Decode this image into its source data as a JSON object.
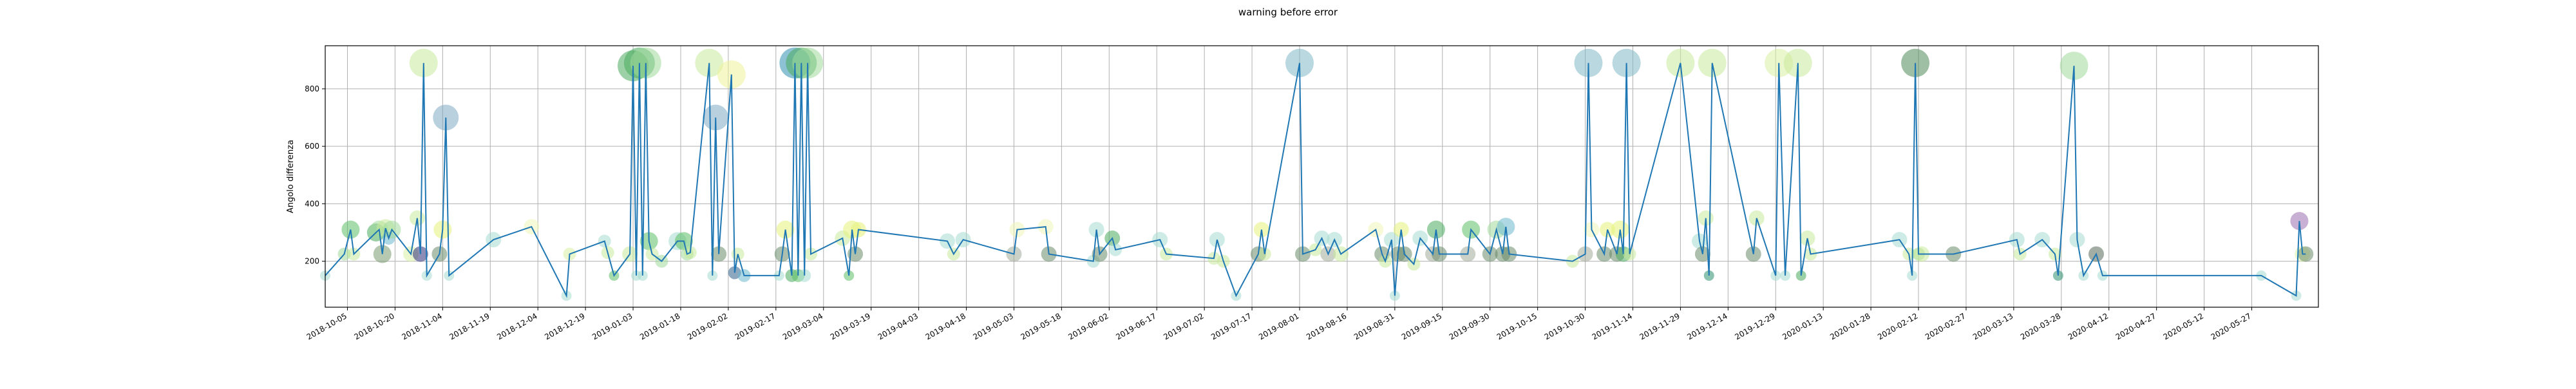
{
  "chart_data": {
    "type": "line",
    "title": "warning before error",
    "xlabel": "",
    "ylabel": "Angolo differenza",
    "xlim": [
      "2018-09-28",
      "2020-06-17"
    ],
    "ylim": [
      40,
      950
    ],
    "grid": true,
    "line_color": "#1f77b4",
    "x_ticks": [
      "2018-10-05",
      "2018-10-20",
      "2018-11-04",
      "2018-11-19",
      "2018-12-04",
      "2018-12-19",
      "2019-01-03",
      "2019-01-18",
      "2019-02-02",
      "2019-02-17",
      "2019-03-04",
      "2019-03-19",
      "2019-04-03",
      "2019-04-18",
      "2019-05-03",
      "2019-05-18",
      "2019-06-02",
      "2019-06-17",
      "2019-07-02",
      "2019-07-17",
      "2019-08-01",
      "2019-08-16",
      "2019-08-31",
      "2019-09-15",
      "2019-09-30",
      "2019-10-15",
      "2019-10-30",
      "2019-11-14",
      "2019-11-29",
      "2019-12-14",
      "2019-12-29",
      "2020-01-13",
      "2020-01-28",
      "2020-02-12",
      "2020-02-27",
      "2020-03-13",
      "2020-03-28",
      "2020-04-12",
      "2020-04-27",
      "2020-05-12",
      "2020-05-27"
    ],
    "y_ticks": [
      200,
      400,
      600,
      800
    ],
    "points": [
      {
        "x": "2018-09-28",
        "y": 150,
        "size": 8,
        "color": "#a5dcd0"
      },
      {
        "x": "2018-10-04",
        "y": 225,
        "size": 10,
        "color": "#9fd99a"
      },
      {
        "x": "2018-10-06",
        "y": 310,
        "size": 14,
        "color": "#5cbf66"
      },
      {
        "x": "2018-10-07",
        "y": 225,
        "size": 10,
        "color": "#c9ea9a"
      },
      {
        "x": "2018-10-14",
        "y": 300,
        "size": 14,
        "color": "#4aab5e"
      },
      {
        "x": "2018-10-15",
        "y": 310,
        "size": 14,
        "color": "#9fd99a"
      },
      {
        "x": "2018-10-16",
        "y": 225,
        "size": 14,
        "color": "#7a9a70"
      },
      {
        "x": "2018-10-17",
        "y": 315,
        "size": 14,
        "color": "#c9ea9a"
      },
      {
        "x": "2018-10-18",
        "y": 280,
        "size": 10,
        "color": "#6db8d0"
      },
      {
        "x": "2018-10-19",
        "y": 310,
        "size": 14,
        "color": "#9fd99a"
      },
      {
        "x": "2018-10-25",
        "y": 225,
        "size": 12,
        "color": "#d9f0a3"
      },
      {
        "x": "2018-10-27",
        "y": 350,
        "size": 12,
        "color": "#c9ea9a"
      },
      {
        "x": "2018-10-28",
        "y": 225,
        "size": 12,
        "color": "#2b2f7a"
      },
      {
        "x": "2018-10-29",
        "y": 890,
        "size": 22,
        "color": "#c9ea9a"
      },
      {
        "x": "2018-10-30",
        "y": 150,
        "size": 8,
        "color": "#a5dcd0"
      },
      {
        "x": "2018-11-03",
        "y": 225,
        "size": 12,
        "color": "#6a8a6a"
      },
      {
        "x": "2018-11-04",
        "y": 310,
        "size": 14,
        "color": "#e6f27a"
      },
      {
        "x": "2018-11-05",
        "y": 700,
        "size": 20,
        "color": "#7fa9c2"
      },
      {
        "x": "2018-11-06",
        "y": 150,
        "size": 8,
        "color": "#a5dcd0"
      },
      {
        "x": "2018-11-20",
        "y": 275,
        "size": 12,
        "color": "#a5dcd0"
      },
      {
        "x": "2018-12-02",
        "y": 320,
        "size": 12,
        "color": "#f0f5b8"
      },
      {
        "x": "2018-12-13",
        "y": 80,
        "size": 8,
        "color": "#a5dcd0"
      },
      {
        "x": "2018-12-14",
        "y": 225,
        "size": 10,
        "color": "#d9f0a3"
      },
      {
        "x": "2018-12-25",
        "y": 270,
        "size": 10,
        "color": "#a5dcd0"
      },
      {
        "x": "2018-12-26",
        "y": 230,
        "size": 10,
        "color": "#c9ea9a"
      },
      {
        "x": "2018-12-28",
        "y": 150,
        "size": 8,
        "color": "#5cbf66"
      },
      {
        "x": "2019-01-02",
        "y": 225,
        "size": 12,
        "color": "#c9ea9a"
      },
      {
        "x": "2019-01-03",
        "y": 880,
        "size": 24,
        "color": "#4aab5e"
      },
      {
        "x": "2019-01-04",
        "y": 150,
        "size": 8,
        "color": "#a5dcd0"
      },
      {
        "x": "2019-01-05",
        "y": 890,
        "size": 24,
        "color": "#4aab5e"
      },
      {
        "x": "2019-01-06",
        "y": 150,
        "size": 8,
        "color": "#a5dcd0"
      },
      {
        "x": "2019-01-07",
        "y": 890,
        "size": 24,
        "color": "#9fd99a"
      },
      {
        "x": "2019-01-08",
        "y": 270,
        "size": 14,
        "color": "#5cbf66"
      },
      {
        "x": "2019-01-09",
        "y": 225,
        "size": 10,
        "color": "#c9ea9a"
      },
      {
        "x": "2019-01-12",
        "y": 200,
        "size": 10,
        "color": "#9fd99a"
      },
      {
        "x": "2019-01-17",
        "y": 270,
        "size": 14,
        "color": "#a5dcd0"
      },
      {
        "x": "2019-01-19",
        "y": 270,
        "size": 14,
        "color": "#5cbf66"
      },
      {
        "x": "2019-01-20",
        "y": 225,
        "size": 10,
        "color": "#9fd99a"
      },
      {
        "x": "2019-01-21",
        "y": 230,
        "size": 10,
        "color": "#c9ea9a"
      },
      {
        "x": "2019-01-27",
        "y": 890,
        "size": 22,
        "color": "#c9ea9a"
      },
      {
        "x": "2019-01-28",
        "y": 150,
        "size": 8,
        "color": "#a5dcd0"
      },
      {
        "x": "2019-01-29",
        "y": 700,
        "size": 20,
        "color": "#7fa9c2"
      },
      {
        "x": "2019-01-30",
        "y": 225,
        "size": 12,
        "color": "#6a8a6a"
      },
      {
        "x": "2019-02-03",
        "y": 850,
        "size": 22,
        "color": "#eef29a"
      },
      {
        "x": "2019-02-04",
        "y": 160,
        "size": 10,
        "color": "#2f5f8a"
      },
      {
        "x": "2019-02-05",
        "y": 225,
        "size": 10,
        "color": "#c9ea9a"
      },
      {
        "x": "2019-02-07",
        "y": 150,
        "size": 10,
        "color": "#6db8d0"
      },
      {
        "x": "2019-02-18",
        "y": 150,
        "size": 8,
        "color": "#a5dcd0"
      },
      {
        "x": "2019-02-19",
        "y": 225,
        "size": 12,
        "color": "#6a8a6a"
      },
      {
        "x": "2019-02-20",
        "y": 310,
        "size": 14,
        "color": "#e6f27a"
      },
      {
        "x": "2019-02-22",
        "y": 150,
        "size": 10,
        "color": "#4aab5e"
      },
      {
        "x": "2019-02-23",
        "y": 890,
        "size": 24,
        "color": "#2e8fb0"
      },
      {
        "x": "2019-02-24",
        "y": 150,
        "size": 10,
        "color": "#5cbf66"
      },
      {
        "x": "2019-02-25",
        "y": 890,
        "size": 24,
        "color": "#4aab5e"
      },
      {
        "x": "2019-02-26",
        "y": 150,
        "size": 10,
        "color": "#a5dcd0"
      },
      {
        "x": "2019-02-27",
        "y": 890,
        "size": 24,
        "color": "#9fd99a"
      },
      {
        "x": "2019-02-28",
        "y": 225,
        "size": 10,
        "color": "#c9ea9a"
      },
      {
        "x": "2019-03-10",
        "y": 280,
        "size": 12,
        "color": "#c9ea9a"
      },
      {
        "x": "2019-03-12",
        "y": 150,
        "size": 8,
        "color": "#5cbf66"
      },
      {
        "x": "2019-03-13",
        "y": 310,
        "size": 14,
        "color": "#e6f27a"
      },
      {
        "x": "2019-03-14",
        "y": 225,
        "size": 12,
        "color": "#6a8a6a"
      },
      {
        "x": "2019-03-15",
        "y": 310,
        "size": 12,
        "color": "#e6f27a"
      },
      {
        "x": "2019-04-12",
        "y": 270,
        "size": 12,
        "color": "#a5dcd0"
      },
      {
        "x": "2019-04-14",
        "y": 225,
        "size": 10,
        "color": "#c9ea9a"
      },
      {
        "x": "2019-04-17",
        "y": 275,
        "size": 12,
        "color": "#a5dcd0"
      },
      {
        "x": "2019-05-03",
        "y": 225,
        "size": 12,
        "color": "#a3ab9a"
      },
      {
        "x": "2019-05-04",
        "y": 310,
        "size": 12,
        "color": "#f0f5b8"
      },
      {
        "x": "2019-05-13",
        "y": 320,
        "size": 12,
        "color": "#f0f5b8"
      },
      {
        "x": "2019-05-14",
        "y": 225,
        "size": 12,
        "color": "#6a8a6a"
      },
      {
        "x": "2019-05-28",
        "y": 200,
        "size": 10,
        "color": "#a5dcd0"
      },
      {
        "x": "2019-05-29",
        "y": 310,
        "size": 12,
        "color": "#a5dcd0"
      },
      {
        "x": "2019-05-30",
        "y": 225,
        "size": 12,
        "color": "#6a8a6a"
      },
      {
        "x": "2019-06-03",
        "y": 280,
        "size": 12,
        "color": "#4aab5e"
      },
      {
        "x": "2019-06-04",
        "y": 240,
        "size": 10,
        "color": "#a5dcd0"
      },
      {
        "x": "2019-06-18",
        "y": 275,
        "size": 12,
        "color": "#a5dcd0"
      },
      {
        "x": "2019-06-20",
        "y": 225,
        "size": 10,
        "color": "#c9ea9a"
      },
      {
        "x": "2019-07-05",
        "y": 210,
        "size": 10,
        "color": "#c9ea9a"
      },
      {
        "x": "2019-07-06",
        "y": 275,
        "size": 12,
        "color": "#a5dcd0"
      },
      {
        "x": "2019-07-08",
        "y": 200,
        "size": 10,
        "color": "#c9ea9a"
      },
      {
        "x": "2019-07-12",
        "y": 80,
        "size": 8,
        "color": "#a5dcd0"
      },
      {
        "x": "2019-07-19",
        "y": 225,
        "size": 12,
        "color": "#6a8a6a"
      },
      {
        "x": "2019-07-20",
        "y": 310,
        "size": 12,
        "color": "#e6f27a"
      },
      {
        "x": "2019-07-21",
        "y": 225,
        "size": 10,
        "color": "#c9ea9a"
      },
      {
        "x": "2019-08-01",
        "y": 890,
        "size": 22,
        "color": "#7fb8c7"
      },
      {
        "x": "2019-08-02",
        "y": 225,
        "size": 12,
        "color": "#6a8a6a"
      },
      {
        "x": "2019-08-06",
        "y": 240,
        "size": 10,
        "color": "#c9ea9a"
      },
      {
        "x": "2019-08-08",
        "y": 280,
        "size": 12,
        "color": "#a5dcd0"
      },
      {
        "x": "2019-08-10",
        "y": 225,
        "size": 12,
        "color": "#a3ab9a"
      },
      {
        "x": "2019-08-12",
        "y": 275,
        "size": 12,
        "color": "#a5dcd0"
      },
      {
        "x": "2019-08-14",
        "y": 225,
        "size": 12,
        "color": "#c9ea9a"
      },
      {
        "x": "2019-08-25",
        "y": 310,
        "size": 12,
        "color": "#f0f5b8"
      },
      {
        "x": "2019-08-27",
        "y": 225,
        "size": 12,
        "color": "#6a8a6a"
      },
      {
        "x": "2019-08-28",
        "y": 200,
        "size": 10,
        "color": "#c9ea9a"
      },
      {
        "x": "2019-08-30",
        "y": 275,
        "size": 12,
        "color": "#a5dcd0"
      },
      {
        "x": "2019-08-31",
        "y": 80,
        "size": 8,
        "color": "#a5dcd0"
      },
      {
        "x": "2019-09-01",
        "y": 225,
        "size": 12,
        "color": "#6a8a6a"
      },
      {
        "x": "2019-09-02",
        "y": 310,
        "size": 12,
        "color": "#e6f27a"
      },
      {
        "x": "2019-09-03",
        "y": 225,
        "size": 12,
        "color": "#6a8a6a"
      },
      {
        "x": "2019-09-06",
        "y": 190,
        "size": 10,
        "color": "#c9ea9a"
      },
      {
        "x": "2019-09-08",
        "y": 280,
        "size": 12,
        "color": "#a5dcd0"
      },
      {
        "x": "2019-09-12",
        "y": 225,
        "size": 12,
        "color": "#a3ab9a"
      },
      {
        "x": "2019-09-13",
        "y": 310,
        "size": 14,
        "color": "#4aab5e"
      },
      {
        "x": "2019-09-14",
        "y": 225,
        "size": 12,
        "color": "#6a8a6a"
      },
      {
        "x": "2019-09-23",
        "y": 225,
        "size": 12,
        "color": "#a3ab9a"
      },
      {
        "x": "2019-09-24",
        "y": 310,
        "size": 14,
        "color": "#5cbf66"
      },
      {
        "x": "2019-09-30",
        "y": 225,
        "size": 12,
        "color": "#6a8a6a"
      },
      {
        "x": "2019-10-02",
        "y": 310,
        "size": 14,
        "color": "#9fd99a"
      },
      {
        "x": "2019-10-04",
        "y": 225,
        "size": 12,
        "color": "#6a8a6a"
      },
      {
        "x": "2019-10-05",
        "y": 320,
        "size": 14,
        "color": "#6db8d0"
      },
      {
        "x": "2019-10-06",
        "y": 225,
        "size": 12,
        "color": "#6a8a6a"
      },
      {
        "x": "2019-10-26",
        "y": 200,
        "size": 10,
        "color": "#c9ea9a"
      },
      {
        "x": "2019-10-30",
        "y": 225,
        "size": 12,
        "color": "#a3ab9a"
      },
      {
        "x": "2019-10-31",
        "y": 890,
        "size": 22,
        "color": "#7fb8c7"
      },
      {
        "x": "2019-11-01",
        "y": 310,
        "size": 12,
        "color": "#f0f5b8"
      },
      {
        "x": "2019-11-05",
        "y": 225,
        "size": 12,
        "color": "#6a8a6a"
      },
      {
        "x": "2019-11-06",
        "y": 310,
        "size": 12,
        "color": "#e6f27a"
      },
      {
        "x": "2019-11-09",
        "y": 225,
        "size": 12,
        "color": "#6a8a6a"
      },
      {
        "x": "2019-11-10",
        "y": 310,
        "size": 14,
        "color": "#e6f27a"
      },
      {
        "x": "2019-11-11",
        "y": 225,
        "size": 12,
        "color": "#4aab5e"
      },
      {
        "x": "2019-11-12",
        "y": 890,
        "size": 22,
        "color": "#7fb8c7"
      },
      {
        "x": "2019-11-13",
        "y": 225,
        "size": 10,
        "color": "#c9ea9a"
      },
      {
        "x": "2019-11-29",
        "y": 890,
        "size": 22,
        "color": "#c9ea9a"
      },
      {
        "x": "2019-12-05",
        "y": 270,
        "size": 12,
        "color": "#a5dcd0"
      },
      {
        "x": "2019-12-06",
        "y": 225,
        "size": 12,
        "color": "#6a8a6a"
      },
      {
        "x": "2019-12-07",
        "y": 350,
        "size": 12,
        "color": "#c9ea9a"
      },
      {
        "x": "2019-12-08",
        "y": 150,
        "size": 8,
        "color": "#2e8f70"
      },
      {
        "x": "2019-12-09",
        "y": 890,
        "size": 22,
        "color": "#c9ea9a"
      },
      {
        "x": "2019-12-22",
        "y": 225,
        "size": 12,
        "color": "#6a8a6a"
      },
      {
        "x": "2019-12-23",
        "y": 350,
        "size": 12,
        "color": "#c9ea9a"
      },
      {
        "x": "2019-12-29",
        "y": 150,
        "size": 8,
        "color": "#a5dcd0"
      },
      {
        "x": "2019-12-30",
        "y": 890,
        "size": 22,
        "color": "#d9f0a3"
      },
      {
        "x": "2020-01-01",
        "y": 150,
        "size": 8,
        "color": "#a5dcd0"
      },
      {
        "x": "2020-01-05",
        "y": 890,
        "size": 22,
        "color": "#c9ea9a"
      },
      {
        "x": "2020-01-06",
        "y": 150,
        "size": 8,
        "color": "#4aab5e"
      },
      {
        "x": "2020-01-08",
        "y": 280,
        "size": 12,
        "color": "#c9ea9a"
      },
      {
        "x": "2020-01-09",
        "y": 225,
        "size": 10,
        "color": "#c9ea9a"
      },
      {
        "x": "2020-02-06",
        "y": 275,
        "size": 12,
        "color": "#a5dcd0"
      },
      {
        "x": "2020-02-09",
        "y": 225,
        "size": 10,
        "color": "#c9ea9a"
      },
      {
        "x": "2020-02-10",
        "y": 150,
        "size": 8,
        "color": "#a5dcd0"
      },
      {
        "x": "2020-02-11",
        "y": 890,
        "size": 22,
        "color": "#4f8a58"
      },
      {
        "x": "2020-02-12",
        "y": 225,
        "size": 10,
        "color": "#9fd99a"
      },
      {
        "x": "2020-02-13",
        "y": 225,
        "size": 12,
        "color": "#c9ea9a"
      },
      {
        "x": "2020-02-23",
        "y": 225,
        "size": 12,
        "color": "#6a8a6a"
      },
      {
        "x": "2020-03-14",
        "y": 275,
        "size": 12,
        "color": "#a5dcd0"
      },
      {
        "x": "2020-03-15",
        "y": 225,
        "size": 10,
        "color": "#c9ea9a"
      },
      {
        "x": "2020-03-22",
        "y": 275,
        "size": 12,
        "color": "#a5dcd0"
      },
      {
        "x": "2020-03-26",
        "y": 225,
        "size": 10,
        "color": "#c9ea9a"
      },
      {
        "x": "2020-03-27",
        "y": 150,
        "size": 8,
        "color": "#2e8f70"
      },
      {
        "x": "2020-04-01",
        "y": 880,
        "size": 22,
        "color": "#9fd99a"
      },
      {
        "x": "2020-04-02",
        "y": 275,
        "size": 12,
        "color": "#a5dcd0"
      },
      {
        "x": "2020-04-04",
        "y": 150,
        "size": 8,
        "color": "#a5dcd0"
      },
      {
        "x": "2020-04-08",
        "y": 225,
        "size": 12,
        "color": "#5a6a5a"
      },
      {
        "x": "2020-04-10",
        "y": 150,
        "size": 8,
        "color": "#a5dcd0"
      },
      {
        "x": "2020-05-30",
        "y": 150,
        "size": 8,
        "color": "#a5dcd0"
      },
      {
        "x": "2020-06-10",
        "y": 80,
        "size": 8,
        "color": "#a5dcd0"
      },
      {
        "x": "2020-06-11",
        "y": 340,
        "size": 14,
        "color": "#9b6fb0"
      },
      {
        "x": "2020-06-12",
        "y": 225,
        "size": 12,
        "color": "#d9f0a3"
      },
      {
        "x": "2020-06-13",
        "y": 225,
        "size": 12,
        "color": "#6a8a6a"
      }
    ]
  }
}
